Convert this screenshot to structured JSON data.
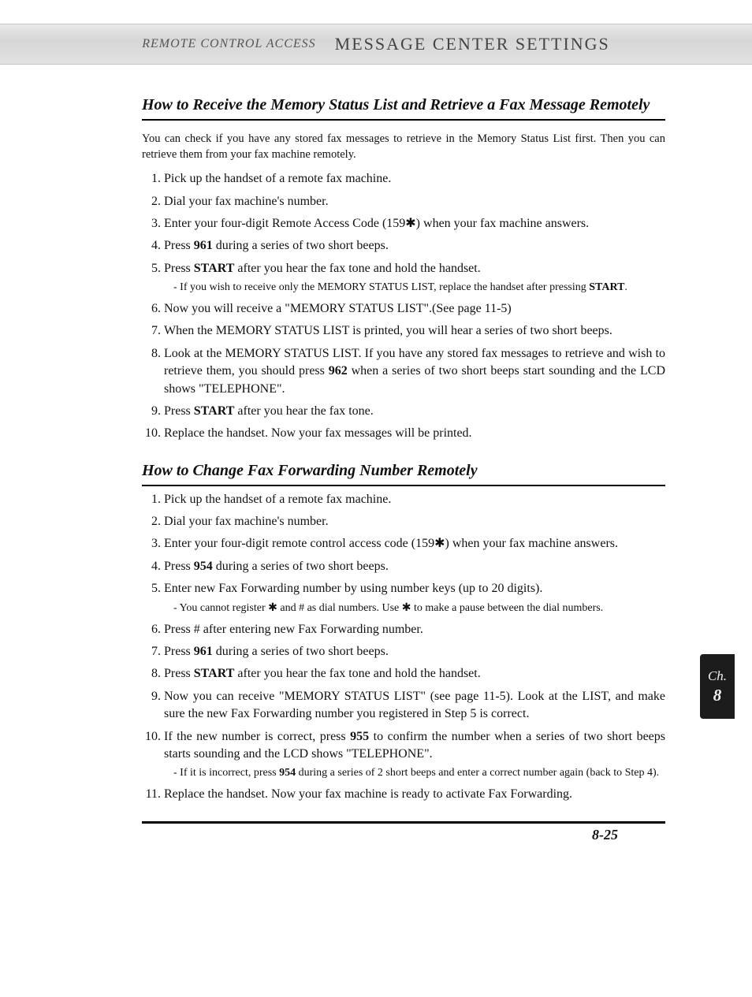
{
  "header": {
    "left": "REMOTE CONTROL ACCESS",
    "right": "MESSAGE CENTER SETTINGS"
  },
  "section1": {
    "title": "How to Receive the Memory Status List and Retrieve a Fax Message Remotely",
    "intro": "You can check if you have any stored fax messages to retrieve in the Memory Status List first. Then you can retrieve them from your fax machine remotely.",
    "steps": [
      {
        "text": "Pick up the handset of a remote fax machine."
      },
      {
        "text": "Dial your fax machine's number."
      },
      {
        "text": "Enter your four-digit Remote Access Code (159✱) when your fax machine answers."
      },
      {
        "pre": "Press ",
        "bold": "961",
        "post": " during a series of two short beeps."
      },
      {
        "pre": "Press ",
        "bold": "START",
        "post": " after you hear the fax tone and hold the handset.",
        "note_pre": "- If you wish to receive only the MEMORY STATUS LIST, replace the handset after pressing ",
        "note_bold": "START",
        "note_post": "."
      },
      {
        "text": "Now you will receive a \"MEMORY STATUS LIST\".(See page 11-5)"
      },
      {
        "text": "When the MEMORY STATUS LIST is printed, you will hear a series of two short beeps."
      },
      {
        "pre": "Look at the MEMORY STATUS LIST. If you have any stored fax messages to retrieve and wish to retrieve them, you should press ",
        "bold": "962",
        "post": " when a series of two short beeps start sounding and the LCD shows \"TELEPHONE\"."
      },
      {
        "pre": "Press ",
        "bold": "START",
        "post": " after you hear the fax tone."
      },
      {
        "text": "Replace the handset. Now your fax messages will be printed."
      }
    ]
  },
  "section2": {
    "title": "How to Change Fax Forwarding Number Remotely",
    "steps": [
      {
        "text": "Pick up the handset of a remote fax machine."
      },
      {
        "text": "Dial your fax machine's number."
      },
      {
        "text": "Enter your four-digit remote control access code (159✱) when your fax machine answers."
      },
      {
        "pre": "Press ",
        "bold": "954",
        "post": " during a series of two short beeps."
      },
      {
        "text": "Enter new Fax Forwarding number by using number keys (up to 20 digits).",
        "note": "- You cannot register ✱ and # as dial numbers.  Use ✱ to make a pause between the dial numbers."
      },
      {
        "text": "Press # after entering new Fax Forwarding number."
      },
      {
        "pre": "Press ",
        "bold": "961",
        "post": " during a series of two short beeps."
      },
      {
        "pre": "Press ",
        "bold": "START",
        "post": " after you hear the fax tone and hold the handset."
      },
      {
        "text": "Now you can receive \"MEMORY STATUS LIST\" (see page 11-5). Look at the LIST, and make sure the new Fax Forwarding number you registered in Step 5 is correct."
      },
      {
        "pre": "If the new number is correct, press ",
        "bold": "955",
        "post": " to confirm the number when a series of two short beeps starts sounding and the LCD shows \"TELEPHONE\".",
        "note_pre": "- If it is incorrect, press ",
        "note_bold": "954",
        "note_post": " during a series of 2 short beeps and enter a correct number again (back to Step 4)."
      },
      {
        "text": "Replace the handset. Now your fax machine is ready to activate Fax Forwarding."
      }
    ]
  },
  "side_tab": {
    "line1": "Ch.",
    "line2": "8"
  },
  "page_number": "8-25",
  "colors": {
    "text": "#111111",
    "header_bg": "#dcdcdc",
    "tab_bg": "#1c1c1c",
    "tab_text": "#f0f0f0"
  }
}
